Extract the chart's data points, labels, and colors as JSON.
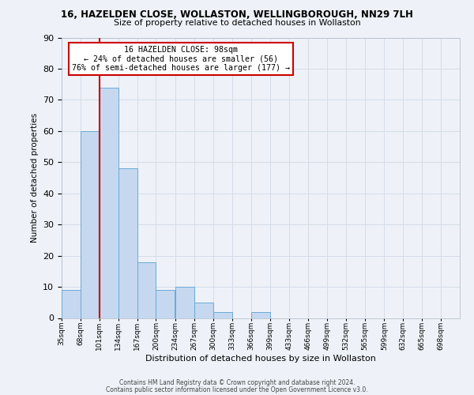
{
  "title1": "16, HAZELDEN CLOSE, WOLLASTON, WELLINGBOROUGH, NN29 7LH",
  "title2": "Size of property relative to detached houses in Wollaston",
  "xlabel": "Distribution of detached houses by size in Wollaston",
  "ylabel": "Number of detached properties",
  "bar_values": [
    9,
    60,
    74,
    48,
    18,
    9,
    10,
    5,
    2,
    0,
    2,
    0,
    0,
    0,
    0,
    0,
    0,
    0,
    0,
    0
  ],
  "bin_labels": [
    "35sqm",
    "68sqm",
    "101sqm",
    "134sqm",
    "167sqm",
    "200sqm",
    "234sqm",
    "267sqm",
    "300sqm",
    "333sqm",
    "366sqm",
    "399sqm",
    "433sqm",
    "466sqm",
    "499sqm",
    "532sqm",
    "565sqm",
    "599sqm",
    "632sqm",
    "665sqm",
    "698sqm"
  ],
  "bin_edges": [
    35,
    68,
    101,
    134,
    167,
    200,
    234,
    267,
    300,
    333,
    366,
    399,
    433,
    466,
    499,
    532,
    565,
    599,
    632,
    665,
    698
  ],
  "bar_color": "#c5d8f0",
  "bar_edge_color": "#6aaad4",
  "ylim": [
    0,
    90
  ],
  "yticks": [
    0,
    10,
    20,
    30,
    40,
    50,
    60,
    70,
    80,
    90
  ],
  "red_line_x": 101,
  "annotation_title": "16 HAZELDEN CLOSE: 98sqm",
  "annotation_line1": "← 24% of detached houses are smaller (56)",
  "annotation_line2": "76% of semi-detached houses are larger (177) →",
  "annotation_box_color": "#ffffff",
  "annotation_border_color": "#cc0000",
  "red_line_color": "#cc0000",
  "grid_color": "#d4dce8",
  "background_color": "#eef2f8",
  "footer1": "Contains HM Land Registry data © Crown copyright and database right 2024.",
  "footer2": "Contains public sector information licensed under the Open Government Licence v3.0."
}
